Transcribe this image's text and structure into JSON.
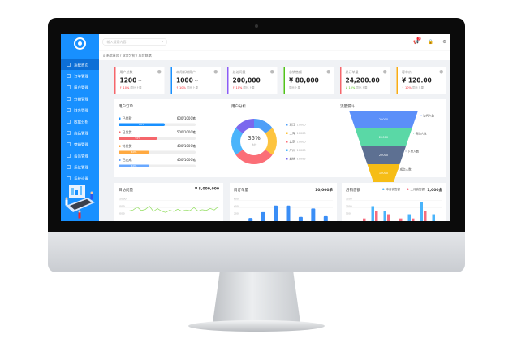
{
  "colors": {
    "brand": "#1890ff",
    "up": "#f5222d",
    "down": "#52c41a"
  },
  "search": {
    "placeholder": "输入搜索内容",
    "icon": "search-icon"
  },
  "header": {
    "notif_count": "3"
  },
  "breadcrumb": [
    "系统首页",
    "/ 业务分析",
    "/ 后台数据"
  ],
  "sidebar": {
    "items": [
      {
        "label": "系统首页",
        "icon": "home-icon"
      },
      {
        "label": "订单管理",
        "icon": "file-icon"
      },
      {
        "label": "用户管理",
        "icon": "user-icon"
      },
      {
        "label": "分销管理",
        "icon": "cart-icon"
      },
      {
        "label": "财务管理",
        "icon": "wallet-icon"
      },
      {
        "label": "数据分析",
        "icon": "chart-icon"
      },
      {
        "label": "商品管理",
        "icon": "goods-icon"
      },
      {
        "label": "营销管理",
        "icon": "gift-icon"
      },
      {
        "label": "会员管理",
        "icon": "member-icon"
      },
      {
        "label": "系统管理",
        "icon": "setting-icon"
      },
      {
        "label": "系统设置",
        "icon": "monitor-icon"
      }
    ]
  },
  "cards": [
    {
      "title": "用户总数",
      "value": "1200",
      "unit": "个",
      "change": "↑ 10%",
      "note": "同比上周",
      "color": "#f5666b",
      "dir": "up"
    },
    {
      "title": "本月新增用户",
      "value": "1000",
      "unit": "个",
      "change": "↑ 10%",
      "note": "同比上周",
      "color": "#1890ff",
      "dir": "up"
    },
    {
      "title": "总访问量",
      "value": "200,000",
      "unit": "",
      "change": "↑ 10%",
      "note": "同比上周",
      "color": "#8b5cf6",
      "dir": "up"
    },
    {
      "title": "总销售额",
      "value": "¥ 80,000",
      "unit": "",
      "change": "",
      "note": "同比上周",
      "color": "#52c41a",
      "dir": "up"
    },
    {
      "title": "总订单量",
      "value": "24,200.00",
      "unit": "",
      "change": "↓ 10%",
      "note": "同比上周",
      "color": "#f5666b",
      "dir": "down"
    },
    {
      "title": "客单价",
      "value": "¥ 120.00",
      "unit": "",
      "change": "↑ 10%",
      "note": "同比上周",
      "color": "#faad14",
      "dir": "up"
    }
  ],
  "orders": {
    "title": "用户订单",
    "items": [
      {
        "label": "已付款",
        "count": "600/1000笔",
        "pct": 60,
        "color": "#1890ff"
      },
      {
        "label": "已发货",
        "count": "500/1000笔",
        "pct": 50,
        "color": "#f5666b"
      },
      {
        "label": "待发货",
        "count": "400/1000笔",
        "pct": 40,
        "color": "#ffa940"
      },
      {
        "label": "已完成",
        "count": "400/1000笔",
        "pct": 40,
        "color": "#69a8ff"
      }
    ]
  },
  "donut": {
    "title": "用户分析",
    "center": "35%",
    "sub": "占比",
    "slices": [
      {
        "label": "浙江",
        "value": "10000",
        "share": 15,
        "color": "#4f9ff8"
      },
      {
        "label": "上海",
        "value": "10000",
        "share": 20,
        "color": "#fdc43f"
      },
      {
        "label": "北京",
        "value": "10000",
        "share": 30,
        "color": "#fb6e77"
      },
      {
        "label": "广州",
        "value": "10000",
        "share": 20,
        "color": "#4ab4fb"
      },
      {
        "label": "其他",
        "value": "10000",
        "share": 15,
        "color": "#7b68ee"
      }
    ]
  },
  "funnel": {
    "title": "流量漏斗",
    "stages": [
      {
        "value": "20000",
        "label": "访问人数",
        "color": "#5b8ff9"
      },
      {
        "value": "20000",
        "label": "咨询人数",
        "color": "#5ad8a6"
      },
      {
        "value": "20000",
        "label": "下单人数",
        "color": "#5d7092"
      },
      {
        "value": "10000",
        "label": "成交人数",
        "color": "#f6bd16"
      }
    ]
  },
  "chart_data": [
    {
      "type": "line",
      "title": "日访问量",
      "total": "¥ 8,000,000",
      "yticks": [
        "10000",
        "6000",
        "3000"
      ],
      "values": [
        3200,
        3600,
        4800,
        3400,
        3800,
        5200,
        3000,
        4200,
        3100,
        2600,
        3500,
        3000,
        3900,
        3100,
        3600,
        3300,
        4600,
        3100,
        3700,
        3400,
        4200,
        3600,
        5000
      ],
      "color": "#95de64"
    },
    {
      "type": "bar",
      "title": "周订单量",
      "total": "10,000单",
      "yticks": [
        "600",
        "400",
        "200"
      ],
      "values": [
        220,
        380,
        560,
        560,
        250,
        480,
        270
      ],
      "color": "#3a8ef6"
    },
    {
      "type": "bar",
      "title": "月销售额",
      "total": "1,000金",
      "yticks": [
        "1500",
        "1000",
        "500"
      ],
      "series": [
        {
          "name": "本月销售额",
          "color": "#4ab4fb",
          "values": [
            0,
            1050,
            800,
            0,
            620,
            1260,
            620
          ]
        },
        {
          "name": "上月销售额",
          "color": "#f56c7e",
          "values": [
            400,
            800,
            620,
            400,
            400,
            780,
            240
          ]
        }
      ]
    }
  ]
}
